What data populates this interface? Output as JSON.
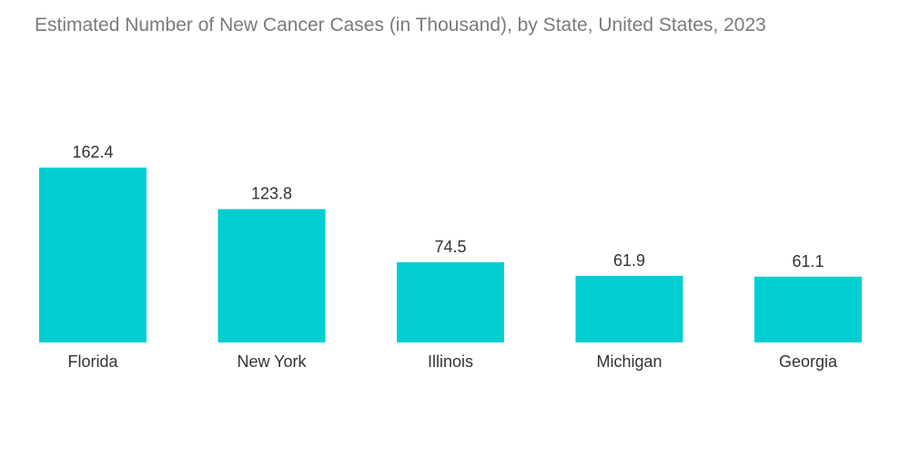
{
  "chart_data": {
    "type": "bar",
    "title": "Estimated Number of New Cancer Cases (in Thousand), by State, United States, 2023",
    "categories": [
      "Florida",
      "New York",
      "Illinois",
      "Michigan",
      "Georgia"
    ],
    "values": [
      162.4,
      123.8,
      74.5,
      61.9,
      61.1
    ],
    "value_labels": [
      "162.4",
      "123.8",
      "74.5",
      "61.9",
      "61.1"
    ],
    "xlabel": "",
    "ylabel": "",
    "ylim": [
      0,
      162.4
    ],
    "grid": false,
    "bar_color": "#00CED1"
  }
}
